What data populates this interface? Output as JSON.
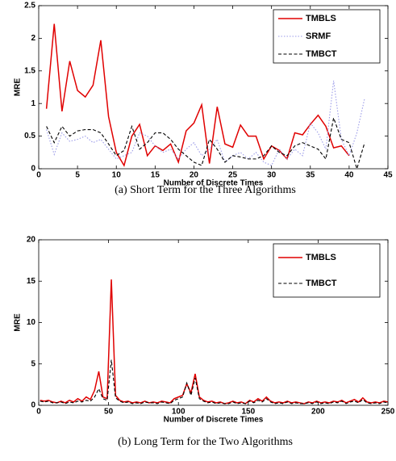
{
  "chart_data": [
    {
      "type": "line",
      "caption": "(a) Short Term for the Three Algorithms",
      "xlabel": "Number of Discrete Times",
      "ylabel": "MRE",
      "xlim": [
        0,
        45
      ],
      "xticks": [
        0,
        5,
        10,
        15,
        20,
        25,
        30,
        35,
        40,
        45
      ],
      "ylim": [
        0,
        2.5
      ],
      "yticks": [
        0,
        0.5,
        1,
        1.5,
        2,
        2.5
      ],
      "legend": "upper right",
      "x": [
        1,
        2,
        3,
        4,
        5,
        6,
        7,
        8,
        9,
        10,
        11,
        12,
        13,
        14,
        15,
        16,
        17,
        18,
        19,
        20,
        21,
        22,
        23,
        24,
        25,
        26,
        27,
        28,
        29,
        30,
        31,
        32,
        33,
        34,
        35,
        36,
        37,
        38,
        39,
        40,
        41,
        42
      ],
      "series": [
        {
          "name": "TMBLS",
          "color": "#e00000",
          "linestyle": "solid",
          "values": [
            0.92,
            2.22,
            0.88,
            1.65,
            1.2,
            1.1,
            1.28,
            1.97,
            0.8,
            0.25,
            0.05,
            0.5,
            0.68,
            0.2,
            0.35,
            0.28,
            0.38,
            0.1,
            0.58,
            0.7,
            0.98,
            0.08,
            0.95,
            0.38,
            0.33,
            0.67,
            0.5,
            0.5,
            0.15,
            0.35,
            0.28,
            0.15,
            0.55,
            0.52,
            0.68,
            0.82,
            0.65,
            0.32,
            0.35,
            0.2,
            null,
            null
          ]
        },
        {
          "name": "SRMF",
          "color": "#9a9ae8",
          "linestyle": "dotted",
          "values": [
            0.6,
            0.22,
            0.55,
            0.42,
            0.45,
            0.5,
            0.4,
            0.45,
            0.3,
            0.15,
            0.2,
            0.25,
            0.55,
            0.5,
            0.35,
            0.25,
            0.3,
            0.15,
            0.3,
            0.4,
            0.2,
            0.3,
            0.45,
            0.1,
            0.2,
            0.25,
            0.15,
            0.25,
            0.1,
            0.05,
            0.3,
            0.15,
            0.3,
            0.2,
            0.7,
            0.55,
            0.3,
            1.35,
            0.45,
            0.2,
            0.55,
            1.08
          ]
        },
        {
          "name": "TMBCT",
          "color": "#000000",
          "linestyle": "dashed",
          "values": [
            0.65,
            0.4,
            0.65,
            0.5,
            0.58,
            0.6,
            0.6,
            0.55,
            0.38,
            0.2,
            0.28,
            0.65,
            0.3,
            0.4,
            0.55,
            0.55,
            0.45,
            0.3,
            0.2,
            0.1,
            0.05,
            0.45,
            0.3,
            0.1,
            0.2,
            0.18,
            0.15,
            0.15,
            0.2,
            0.35,
            0.25,
            0.2,
            0.35,
            0.4,
            0.35,
            0.3,
            0.15,
            0.78,
            0.45,
            0.4,
            0,
            0.4
          ]
        }
      ]
    },
    {
      "type": "line",
      "caption": "(b) Long Term for the Two Algorithms",
      "xlabel": "Number of Discrete Times",
      "ylabel": "MRE",
      "xlim": [
        0,
        250
      ],
      "xticks": [
        0,
        50,
        100,
        150,
        200,
        250
      ],
      "ylim": [
        0,
        20
      ],
      "yticks": [
        0,
        5,
        10,
        15,
        20
      ],
      "legend": "upper right",
      "x": [
        1,
        4,
        7,
        10,
        13,
        16,
        19,
        22,
        25,
        28,
        31,
        34,
        37,
        40,
        43,
        46,
        49,
        52,
        55,
        58,
        61,
        64,
        67,
        70,
        73,
        76,
        79,
        82,
        85,
        88,
        91,
        94,
        97,
        100,
        103,
        106,
        109,
        112,
        115,
        118,
        121,
        124,
        127,
        130,
        133,
        136,
        139,
        142,
        145,
        148,
        151,
        154,
        157,
        160,
        163,
        166,
        169,
        172,
        175,
        178,
        181,
        184,
        187,
        190,
        193,
        196,
        199,
        202,
        205,
        208,
        211,
        214,
        217,
        220,
        223,
        226,
        229,
        232,
        235,
        238,
        241,
        244,
        247,
        250
      ],
      "series": [
        {
          "name": "TMBLS",
          "color": "#e00000",
          "linestyle": "solid",
          "values": [
            0.6,
            0.5,
            0.6,
            0.4,
            0.3,
            0.5,
            0.3,
            0.6,
            0.4,
            0.8,
            0.5,
            1.0,
            0.7,
            1.8,
            4.1,
            1.0,
            0.8,
            15.2,
            1.2,
            0.6,
            0.4,
            0.5,
            0.3,
            0.4,
            0.3,
            0.5,
            0.3,
            0.4,
            0.3,
            0.5,
            0.4,
            0.3,
            0.8,
            1.0,
            1.2,
            2.6,
            1.5,
            3.8,
            1.0,
            0.6,
            0.4,
            0.5,
            0.3,
            0.4,
            0.2,
            0.3,
            0.5,
            0.3,
            0.4,
            0.2,
            0.6,
            0.4,
            0.8,
            0.5,
            1.0,
            0.5,
            0.3,
            0.4,
            0.3,
            0.5,
            0.3,
            0.4,
            0.3,
            0.2,
            0.4,
            0.3,
            0.5,
            0.3,
            0.4,
            0.3,
            0.5,
            0.4,
            0.6,
            0.3,
            0.5,
            0.7,
            0.4,
            0.9,
            0.4,
            0.3,
            0.4,
            0.3,
            0.5,
            0.4
          ]
        },
        {
          "name": "TMBCT",
          "color": "#000000",
          "linestyle": "dashed",
          "values": [
            0.5,
            0.4,
            0.5,
            0.3,
            0.3,
            0.4,
            0.2,
            0.4,
            0.3,
            0.5,
            0.4,
            0.6,
            0.5,
            1.0,
            2.0,
            0.8,
            0.6,
            5.5,
            0.9,
            0.5,
            0.3,
            0.4,
            0.2,
            0.3,
            0.2,
            0.4,
            0.3,
            0.3,
            0.2,
            0.4,
            0.3,
            0.2,
            0.6,
            0.8,
            1.0,
            2.7,
            1.2,
            3.3,
            0.8,
            0.5,
            0.3,
            0.4,
            0.2,
            0.3,
            0.2,
            0.2,
            0.4,
            0.2,
            0.3,
            0.2,
            0.5,
            0.3,
            0.6,
            0.4,
            0.8,
            0.4,
            0.2,
            0.3,
            0.2,
            0.4,
            0.2,
            0.3,
            0.2,
            0.2,
            0.3,
            0.2,
            0.4,
            0.2,
            0.3,
            0.2,
            0.4,
            0.3,
            0.5,
            0.2,
            0.4,
            0.5,
            0.3,
            0.7,
            0.3,
            0.2,
            0.3,
            0.2,
            0.4,
            0.3
          ]
        }
      ]
    }
  ]
}
